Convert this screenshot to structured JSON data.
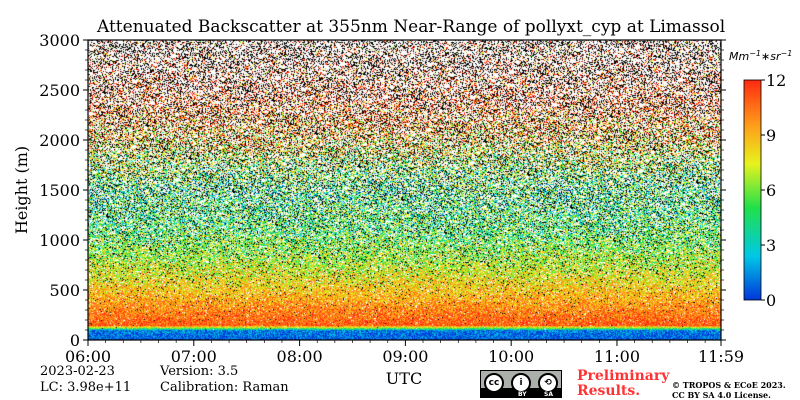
{
  "chart_data": {
    "type": "heatmap",
    "title": "Attenuated Backscatter at 355nm Near-Range of pollyxt_cyp at Limassol",
    "xlabel": "UTC",
    "ylabel": "Height (m)",
    "x_ticks": [
      "06:00",
      "07:00",
      "08:00",
      "09:00",
      "10:00",
      "11:00",
      "11:59"
    ],
    "x_range": [
      "06:00",
      "11:59"
    ],
    "y_ticks": [
      0,
      500,
      1000,
      1500,
      2000,
      2500,
      3000
    ],
    "ylim": [
      0,
      3000
    ],
    "colorbar": {
      "label": "Mm^-1*sr^-1",
      "ticks": [
        0,
        3,
        6,
        9,
        12
      ],
      "range": [
        0,
        12
      ],
      "colormap": [
        "#0035d9",
        "#00c8e6",
        "#22e04a",
        "#e8f21e",
        "#ff9a1a",
        "#ff2a10"
      ]
    },
    "profile": {
      "heights": [
        0,
        100,
        150,
        300,
        500,
        800,
        1100,
        1500,
        1800,
        2000,
        2200,
        2400,
        2700,
        3000
      ],
      "mean_values": [
        0.5,
        1.2,
        11,
        10,
        8.5,
        6.5,
        5,
        4.5,
        6.5,
        8.5,
        10,
        12,
        12,
        12
      ],
      "noise_fraction": [
        0,
        0,
        0.02,
        0.05,
        0.12,
        0.25,
        0.38,
        0.5,
        0.55,
        0.6,
        0.65,
        0.75,
        0.85,
        0.92
      ]
    }
  },
  "meta": {
    "date": "2023-02-23",
    "lc": "LC: 3.98e+11",
    "version": "Version: 3.5",
    "calibration": "Calibration: Raman"
  },
  "badge": {
    "preliminary_line1": "Preliminary",
    "preliminary_line2": "Results.",
    "copyright_line1": "© TROPOS & ECoE 2023.",
    "copyright_line2": "CC BY SA 4.0 License.",
    "license_icons": [
      "cc",
      "by",
      "sa"
    ],
    "license_labels": [
      "BY",
      "SA"
    ]
  }
}
